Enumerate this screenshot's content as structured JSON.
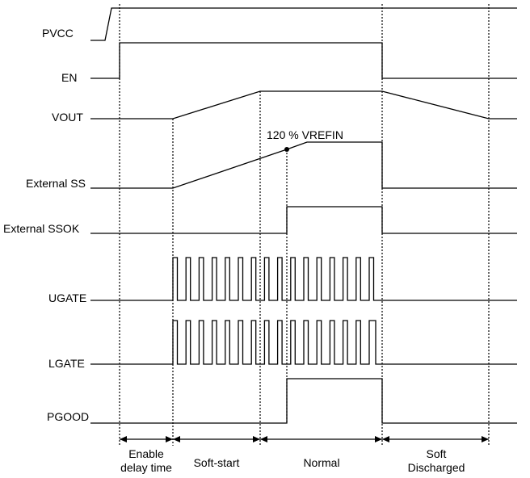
{
  "signals": {
    "pvcc": "PVCC",
    "en": "EN",
    "vout": "VOUT",
    "ext_ss": "External SS",
    "ext_ssok": "External SSOK",
    "ugate": "UGATE",
    "lgate": "LGATE",
    "pgood": "PGOOD"
  },
  "annotation": "120 % VREFIN",
  "phases": {
    "enable_line1": "Enable",
    "enable_line2": "delay time",
    "soft_start": "Soft-start",
    "normal": "Normal",
    "soft_discharged_line1": "Soft",
    "soft_discharged_line2": "Discharged"
  }
}
